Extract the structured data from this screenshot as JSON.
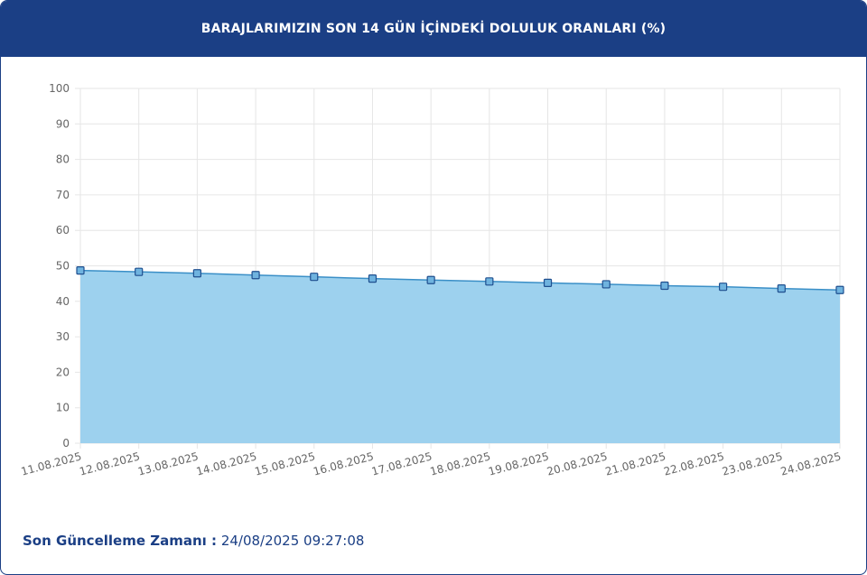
{
  "header": {
    "title": "BARAJLARIMIZIN SON 14 GÜN İÇİNDEKİ DOLULUK ORANLARI (%)"
  },
  "footer": {
    "label": "Son Güncelleme Zamanı :",
    "value": "24/08/2025 09:27:08"
  },
  "colors": {
    "header_bg": "#1b3f85",
    "line": "#3a8fc7",
    "fill": "#9dd1ee",
    "point_fill": "#6fb3df",
    "point_stroke": "#1f4f8f",
    "grid": "#e6e6e6",
    "tick_text": "#666666"
  },
  "chart_data": {
    "type": "area",
    "title": "",
    "xlabel": "",
    "ylabel": "",
    "ylim": [
      0,
      100
    ],
    "yticks": [
      0,
      10,
      20,
      30,
      40,
      50,
      60,
      70,
      80,
      90,
      100
    ],
    "grid": true,
    "categories": [
      "11.08.2025",
      "12.08.2025",
      "13.08.2025",
      "14.08.2025",
      "15.08.2025",
      "16.08.2025",
      "17.08.2025",
      "18.08.2025",
      "19.08.2025",
      "20.08.2025",
      "21.08.2025",
      "22.08.2025",
      "23.08.2025",
      "24.08.2025"
    ],
    "values": [
      48.7,
      48.3,
      47.9,
      47.4,
      46.9,
      46.4,
      46.0,
      45.6,
      45.2,
      44.8,
      44.4,
      44.1,
      43.6,
      43.2
    ]
  }
}
